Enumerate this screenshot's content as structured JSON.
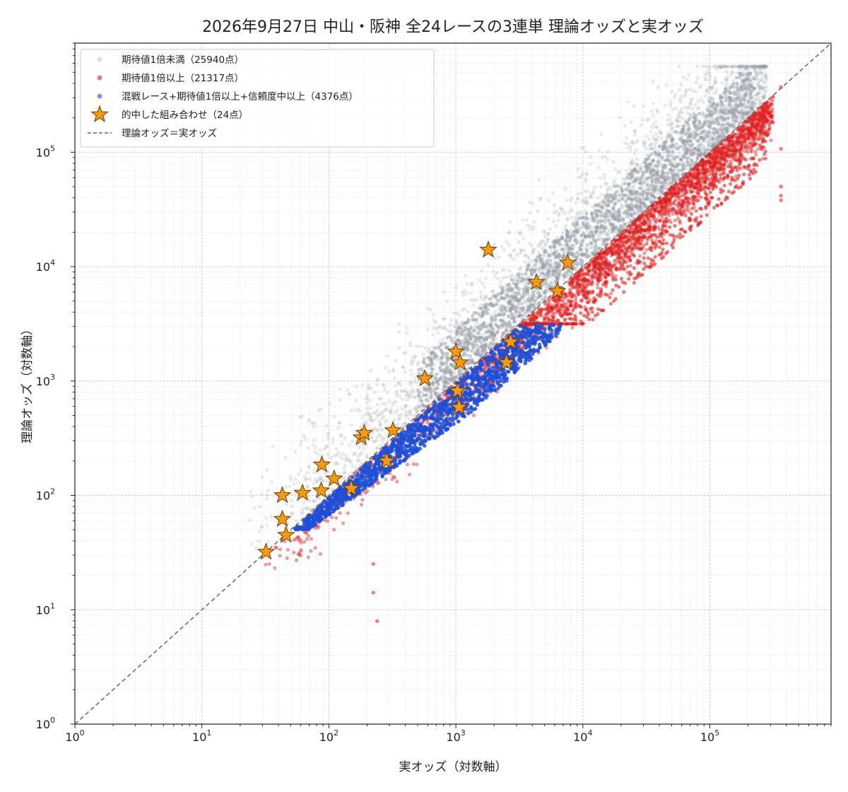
{
  "chart_data": {
    "type": "scatter",
    "title": "2026年9月27日 中山・阪神 全24レースの3連単 理論オッズと実オッズ",
    "xlabel": "実オッズ（対数軸）",
    "ylabel": "理論オッズ（対数軸）",
    "x_scale": "log",
    "y_scale": "log",
    "xlim": [
      1,
      900000
    ],
    "ylim": [
      1,
      900000
    ],
    "grid": true,
    "legend_position": "upper-left",
    "x_ticks": [
      {
        "base": "10",
        "exp": "0"
      },
      {
        "base": "10",
        "exp": "1"
      },
      {
        "base": "10",
        "exp": "2"
      },
      {
        "base": "10",
        "exp": "3"
      },
      {
        "base": "10",
        "exp": "4"
      },
      {
        "base": "10",
        "exp": "5"
      }
    ],
    "y_ticks": [
      {
        "base": "10",
        "exp": "0"
      },
      {
        "base": "10",
        "exp": "1"
      },
      {
        "base": "10",
        "exp": "2"
      },
      {
        "base": "10",
        "exp": "3"
      },
      {
        "base": "10",
        "exp": "4"
      },
      {
        "base": "10",
        "exp": "5"
      }
    ],
    "legend": [
      {
        "label": "期待値1倍未満（25940点）",
        "color": "#9aa0aa",
        "marker": "circle"
      },
      {
        "label": "期待値1倍以上（21317点）",
        "color": "#dd2222",
        "marker": "circle"
      },
      {
        "label": "混戦レース+期待値1倍以上+信頼度中以上（4376点）",
        "color": "#1f4fd6",
        "marker": "circle"
      },
      {
        "label": "的中した組み合わせ（24点）",
        "color": "#f59a12",
        "marker": "star"
      },
      {
        "label": "理論オッズ＝実オッズ",
        "color": "#666666",
        "marker": "dashed-line"
      }
    ],
    "series": [
      {
        "name": "期待値1倍未満（25940点）",
        "color": "#9aa0aa",
        "count": 25940
      },
      {
        "name": "期待値1倍以上（21317点）",
        "color": "#dd2222",
        "count": 21317
      },
      {
        "name": "混戦レース+期待値1倍以上+信頼度中以上（4376点）",
        "color": "#1f4fd6",
        "count": 4376
      },
      {
        "name": "的中した組み合わせ（24点）",
        "color": "#f59a12",
        "count": 24,
        "points": [
          {
            "x": 32,
            "y": 32
          },
          {
            "x": 43,
            "y": 100
          },
          {
            "x": 43,
            "y": 62
          },
          {
            "x": 46,
            "y": 45
          },
          {
            "x": 62,
            "y": 105
          },
          {
            "x": 87,
            "y": 110
          },
          {
            "x": 88,
            "y": 185
          },
          {
            "x": 110,
            "y": 140
          },
          {
            "x": 150,
            "y": 115
          },
          {
            "x": 180,
            "y": 320
          },
          {
            "x": 190,
            "y": 350
          },
          {
            "x": 285,
            "y": 200
          },
          {
            "x": 320,
            "y": 370
          },
          {
            "x": 570,
            "y": 1050
          },
          {
            "x": 1000,
            "y": 1800
          },
          {
            "x": 1080,
            "y": 1450
          },
          {
            "x": 1030,
            "y": 820
          },
          {
            "x": 1060,
            "y": 590
          },
          {
            "x": 1800,
            "y": 14000
          },
          {
            "x": 2500,
            "y": 1450
          },
          {
            "x": 2700,
            "y": 2200
          },
          {
            "x": 4300,
            "y": 7300
          },
          {
            "x": 6300,
            "y": 6100
          },
          {
            "x": 7600,
            "y": 10800
          }
        ]
      }
    ],
    "reference_line": {
      "label": "理論オッズ＝実オッズ",
      "color": "#666666",
      "style": "dashed"
    }
  }
}
